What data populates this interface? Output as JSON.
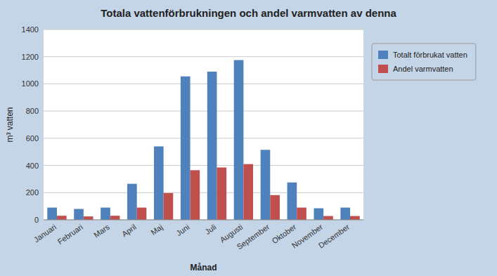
{
  "chart_data": {
    "type": "bar",
    "title": "Totala vattenförbrukningen och andel varmvatten av denna",
    "xlabel": "Månad",
    "ylabel": "m³ vatten",
    "categories": [
      "Januari",
      "Februari",
      "Mars",
      "April",
      "Maj",
      "Juni",
      "Juli",
      "Augusti",
      "September",
      "Oktober",
      "November",
      "December"
    ],
    "series": [
      {
        "name": "Totalt förbrukat vatten",
        "color": "#4F81BD",
        "values": [
          90,
          80,
          90,
          265,
          540,
          1055,
          1090,
          1175,
          515,
          275,
          85,
          90
        ]
      },
      {
        "name": "Andel varmvatten",
        "color": "#C0504D",
        "values": [
          30,
          25,
          30,
          90,
          197,
          365,
          385,
          410,
          182,
          90,
          28,
          28
        ]
      }
    ],
    "ylim": [
      0,
      1400
    ],
    "yticks": [
      0,
      200,
      400,
      600,
      800,
      1000,
      1200,
      1400
    ],
    "grid": true,
    "legend": "right"
  }
}
